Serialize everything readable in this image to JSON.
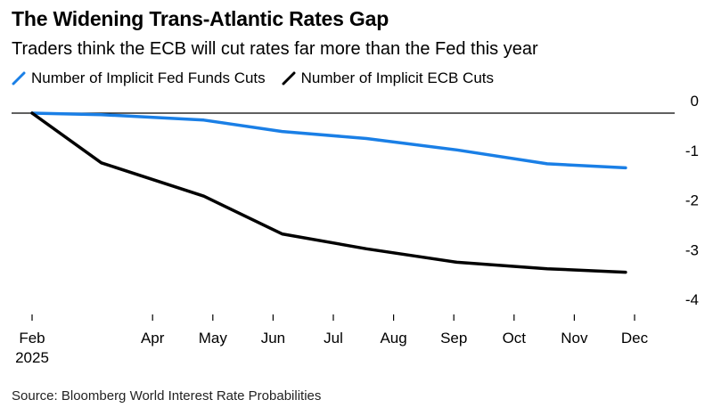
{
  "title": "The Widening Trans-Atlantic Rates Gap",
  "subtitle": "Traders think the ECB will cut rates far more than the Fed this year",
  "source": "Source: Bloomberg World Interest Rate Probabilities",
  "colors": {
    "fed": "#1a7fe6",
    "ecb": "#000000",
    "axis": "#000000"
  },
  "chart_data": {
    "type": "line",
    "title": "The Widening Trans-Atlantic Rates Gap",
    "subtitle": "Traders think the ECB will cut rates far more than the Fed this year",
    "x_tick_labels": [
      "Feb",
      "Apr",
      "May",
      "Jun",
      "Jul",
      "Aug",
      "Sep",
      "Oct",
      "Nov",
      "Dec"
    ],
    "x_tick_positions": [
      0,
      2,
      3,
      4,
      5,
      6,
      7,
      8,
      9,
      10
    ],
    "x_secondary_label": "2025",
    "xlim": [
      0,
      10.3
    ],
    "y_tick_labels": [
      "0",
      "-1",
      "-2",
      "-3",
      "-4"
    ],
    "y_ticks": [
      0,
      -1,
      -2,
      -3,
      -4
    ],
    "ylim": [
      -4,
      0
    ],
    "y_axis_side": "right",
    "zero_line": true,
    "grid": false,
    "legend_position": "top-left",
    "x": [
      0,
      1.15,
      2.85,
      4.15,
      5.55,
      7.05,
      8.55,
      9.85
    ],
    "series": [
      {
        "name": "Number of Implicit Fed Funds Cuts",
        "color": "#1a7fe6",
        "values": [
          0,
          -0.03,
          -0.14,
          -0.37,
          -0.51,
          -0.74,
          -1.02,
          -1.1
        ]
      },
      {
        "name": "Number of Implicit ECB Cuts",
        "color": "#000000",
        "values": [
          0,
          -1.0,
          -1.67,
          -2.43,
          -2.73,
          -3.0,
          -3.13,
          -3.2
        ]
      }
    ]
  }
}
